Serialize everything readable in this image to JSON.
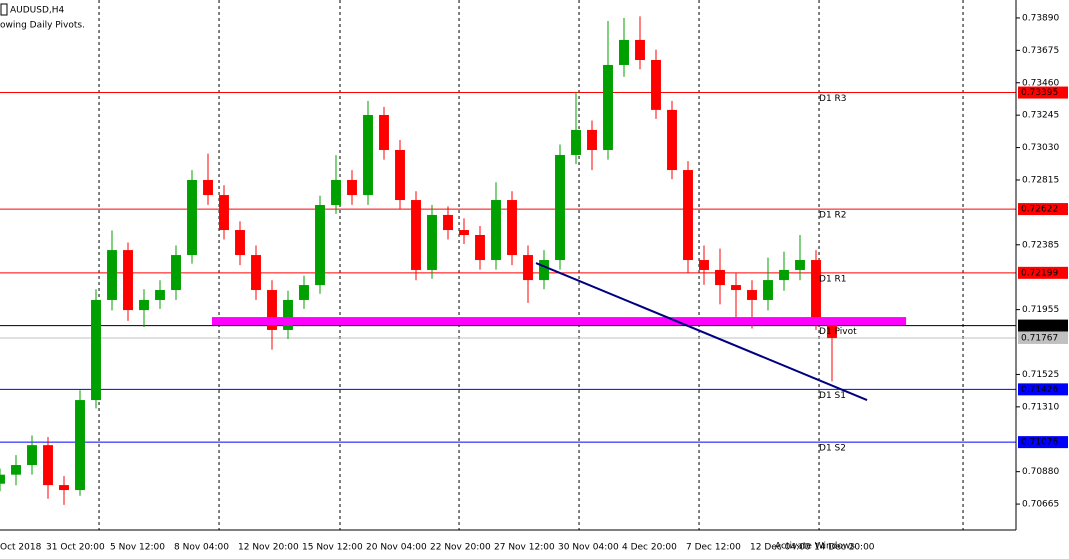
{
  "chart_data": {
    "type": "candlestick",
    "title": "AUDUSD,H4",
    "subtitle": "owing Daily Pivots.",
    "categories": [
      "Oct 2018",
      null,
      null,
      null,
      "31 Oct 20:00",
      null,
      null,
      null,
      "5 Nov 12:00",
      null,
      null,
      null,
      "8 Nov 04:00",
      null,
      null,
      null,
      "12 Nov 20:00",
      null,
      null,
      null,
      "15 Nov 12:00",
      null,
      null,
      null,
      "20 Nov 04:00",
      null,
      null,
      null,
      "22 Nov 20:00",
      null,
      null,
      null,
      "27 Nov 12:00",
      null,
      null,
      null,
      "30 Nov 04:00",
      null,
      null,
      null,
      "4 Dec 20:00",
      null,
      null,
      null,
      "7 Dec 12:00",
      null,
      null,
      null,
      "12 Dec 04:00",
      null,
      null,
      null,
      "14 Dec 20:00"
    ],
    "open": [
      0.708,
      0.7086,
      0.70924,
      0.71056,
      0.70791,
      0.70758,
      0.71355,
      0.72019,
      0.7235,
      0.71952,
      0.72019,
      0.72085,
      0.72317,
      0.72815,
      0.72715,
      0.72483,
      0.72317,
      0.72085,
      0.7182,
      0.72019,
      0.72118,
      0.72649,
      0.72815,
      0.72715,
      0.73246,
      0.73014,
      0.72682,
      0.72218,
      0.72583,
      0.72483,
      0.7245,
      0.72284,
      0.72682,
      0.72317,
      0.72151,
      0.72284,
      0.72981,
      0.73147,
      0.73014,
      0.73578,
      0.73744,
      0.73611,
      0.7328,
      0.72881,
      0.72284,
      0.72218,
      0.72118,
      0.72085,
      0.72019,
      0.72151,
      0.72218,
      0.72284,
      0.71886
    ],
    "high": [
      0.709,
      0.7099,
      0.7112,
      0.7111,
      0.7085,
      0.7142,
      0.7209,
      0.7248,
      0.724,
      0.7209,
      0.7215,
      0.7238,
      0.7288,
      0.7299,
      0.7278,
      0.7254,
      0.7238,
      0.7215,
      0.7208,
      0.7218,
      0.7271,
      0.7298,
      0.7288,
      0.7334,
      0.733,
      0.7308,
      0.7274,
      0.7265,
      0.7264,
      0.7256,
      0.7251,
      0.728,
      0.7274,
      0.7238,
      0.7235,
      0.7305,
      0.734,
      0.7321,
      0.7387,
      0.7389,
      0.739,
      0.7368,
      0.7334,
      0.7294,
      0.7238,
      0.7236,
      0.722,
      0.7215,
      0.723,
      0.7234,
      0.7245,
      0.7235,
      0.719
    ],
    "low": [
      0.7075,
      0.7079,
      0.7086,
      0.707,
      0.7066,
      0.7072,
      0.713,
      0.7195,
      0.7188,
      0.7184,
      0.7196,
      0.7202,
      0.7226,
      0.7265,
      0.7242,
      0.7225,
      0.7202,
      0.7169,
      0.7176,
      0.7196,
      0.7206,
      0.7259,
      0.7265,
      0.7265,
      0.7295,
      0.7262,
      0.7215,
      0.7216,
      0.7242,
      0.7239,
      0.7222,
      0.7222,
      0.7225,
      0.72,
      0.7209,
      0.7222,
      0.7292,
      0.7288,
      0.7295,
      0.735,
      0.7355,
      0.7322,
      0.7282,
      0.722,
      0.7212,
      0.7199,
      0.7185,
      0.7183,
      0.7195,
      0.7208,
      0.7215,
      0.7182,
      0.7148
    ],
    "close": [
      0.7086,
      0.70924,
      0.71056,
      0.70791,
      0.70758,
      0.71355,
      0.72019,
      0.7235,
      0.71952,
      0.72019,
      0.72085,
      0.72317,
      0.72815,
      0.72715,
      0.72483,
      0.72317,
      0.72085,
      0.7182,
      0.72019,
      0.72118,
      0.72649,
      0.72815,
      0.72715,
      0.73246,
      0.73014,
      0.72682,
      0.72218,
      0.72583,
      0.72483,
      0.7245,
      0.72284,
      0.72682,
      0.72317,
      0.72151,
      0.72284,
      0.72981,
      0.73147,
      0.73014,
      0.73578,
      0.73744,
      0.73611,
      0.7328,
      0.72881,
      0.72284,
      0.72218,
      0.72118,
      0.72085,
      0.72019,
      0.72151,
      0.72218,
      0.72284,
      0.71886,
      0.71767
    ],
    "up_color": "#00a000",
    "down_color": "#ff0000",
    "xlim": [
      0,
      63.5
    ],
    "ylim": [
      0.70493,
      0.74009
    ],
    "yticks": [
      {
        "value": 0.7389,
        "label": "0.73890"
      },
      0.73675,
      {
        "value": 0.7346,
        "label": "0.73460"
      },
      0.73245,
      {
        "value": 0.7303,
        "label": "0.73030"
      },
      0.72815,
      0.72385,
      0.71955,
      0.71525,
      {
        "value": 0.7131,
        "label": "0.71310"
      },
      {
        "value": 0.7088,
        "label": "0.70880"
      },
      0.70665
    ],
    "xgrid": [
      6.19,
      13.69,
      21.25,
      28.69,
      36.19,
      43.69,
      51.19,
      60.19
    ],
    "levels": [
      {
        "name": "D1 R3",
        "value": 0.73395,
        "color": "#ff0000"
      },
      {
        "name": "D1 R2",
        "value": 0.72622,
        "color": "#ff0000"
      },
      {
        "name": "D1 R1",
        "value": 0.72199,
        "color": "#ff0000"
      },
      {
        "name": "D1 Pivot",
        "value": 0.71849,
        "color": "#000000"
      },
      {
        "name": "D1 S1",
        "value": 0.71426,
        "color": "#0000ff"
      },
      {
        "name": "D1 S2",
        "value": 0.71076,
        "color": "#0000ff"
      }
    ],
    "price_lines": [
      {
        "value": 0.71767,
        "color": "#c0c0c0"
      }
    ],
    "zone": {
      "value": 0.71879,
      "x": [
        13.25,
        56.63
      ],
      "color": "#ff00ff"
    },
    "trendline": {
      "x": [
        33.5,
        54.19
      ],
      "y": [
        0.72264,
        0.71355
      ],
      "color": "#000080"
    },
    "watermark": "Activate Windows"
  }
}
